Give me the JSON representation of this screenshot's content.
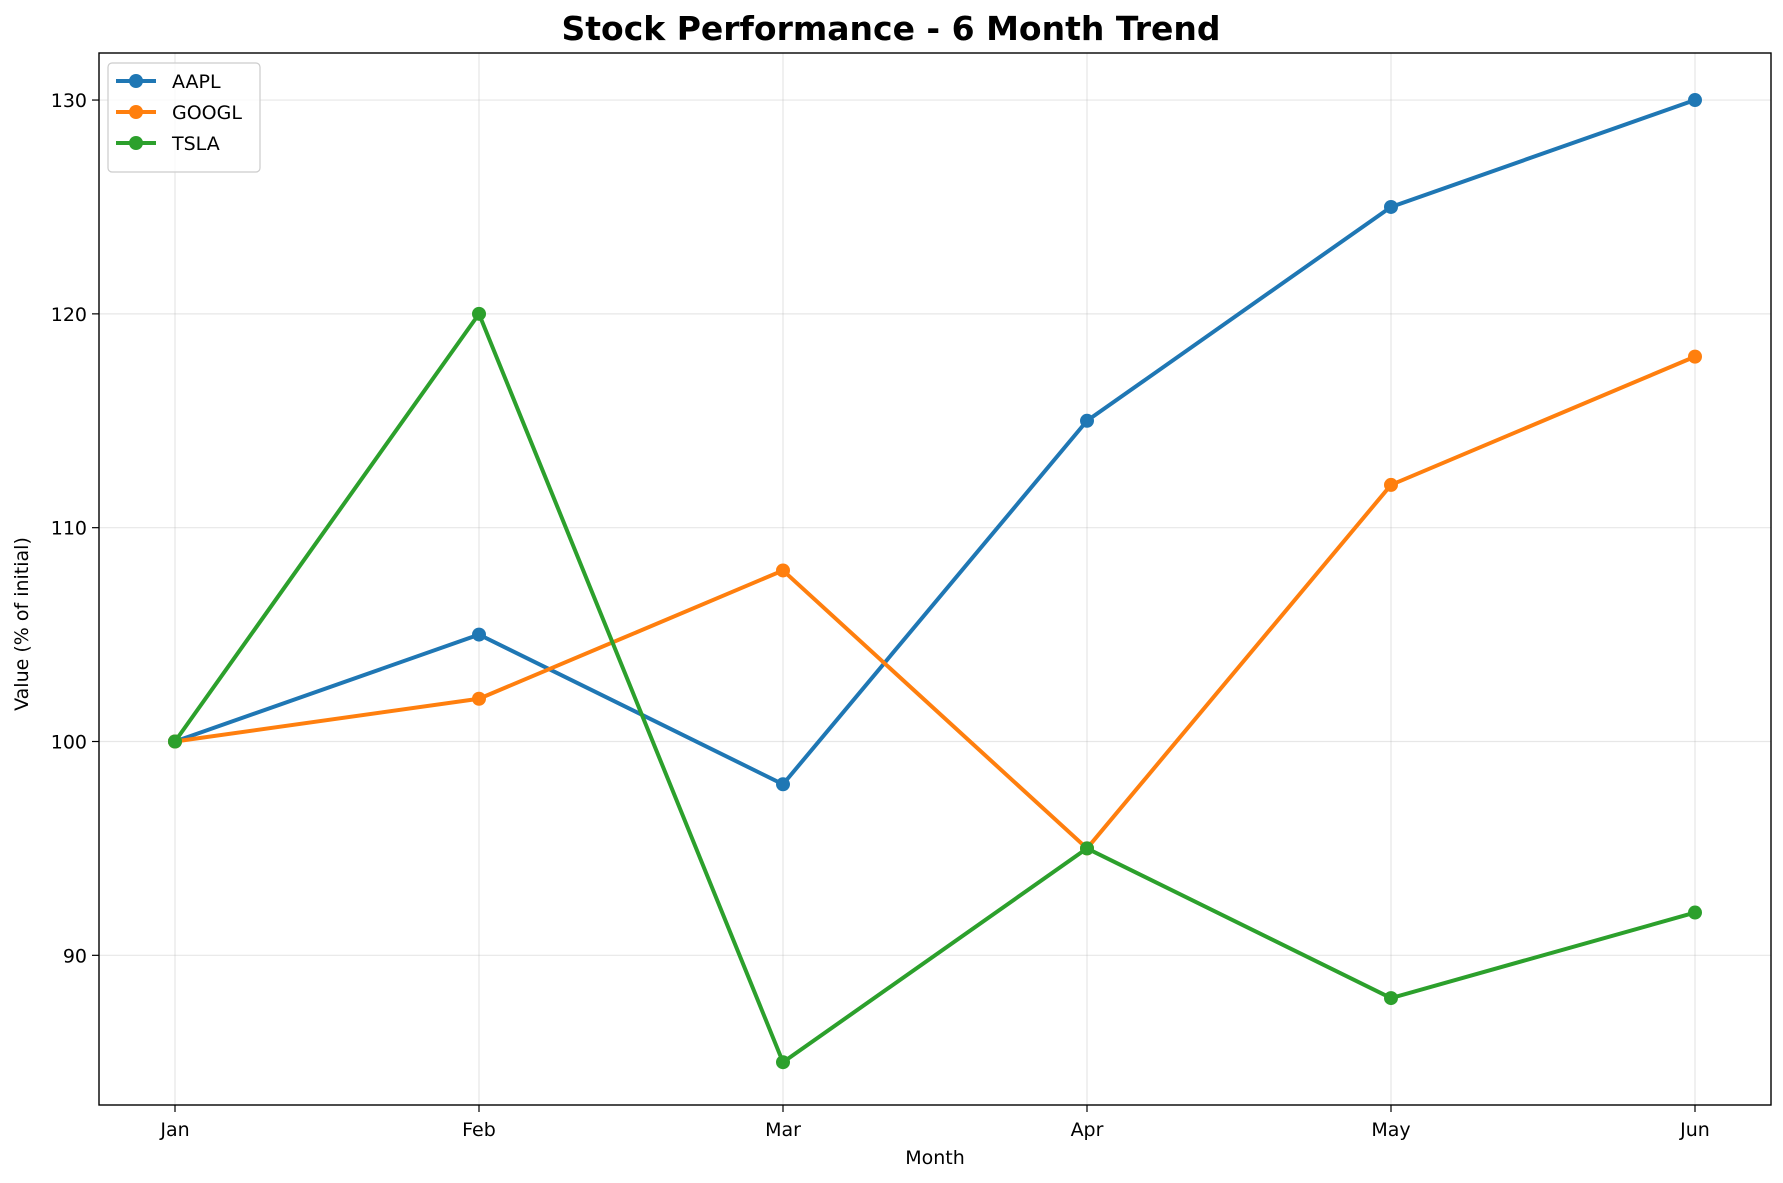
{
  "chart_data": {
    "type": "line",
    "title": "Stock Performance - 6 Month Trend",
    "xlabel": "Month",
    "ylabel": "Value (% of initial)",
    "categories": [
      "Jan",
      "Feb",
      "Mar",
      "Apr",
      "May",
      "Jun"
    ],
    "ylim": [
      83,
      132.2
    ],
    "yticks": [
      90,
      100,
      110,
      120,
      130
    ],
    "grid": true,
    "legend_position": "top-left",
    "series": [
      {
        "name": "AAPL",
        "color": "#1f77b4",
        "marker": "circle",
        "values": [
          100,
          105,
          98,
          115,
          125,
          130
        ]
      },
      {
        "name": "GOOGL",
        "color": "#ff7f0e",
        "marker": "circle",
        "values": [
          100,
          102,
          108,
          95,
          112,
          118
        ]
      },
      {
        "name": "TSLA",
        "color": "#2ca02c",
        "marker": "circle",
        "values": [
          100,
          120,
          85,
          95,
          88,
          92
        ]
      }
    ]
  }
}
